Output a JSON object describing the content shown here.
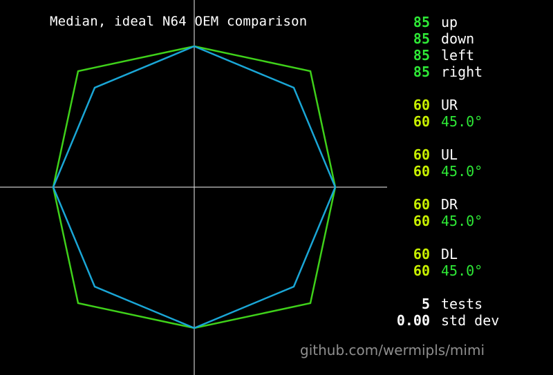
{
  "title": "Median, ideal N64 OEM comparison",
  "colors": {
    "background": "#000000",
    "axis": "#c8c8c8",
    "ideal_outline": "#3fd11a",
    "measured_outline": "#1aa6d6",
    "cardinal_value": "#2ee836",
    "diagonal_value": "#c8f000",
    "angle_value": "#2ee836",
    "label": "#ffffff",
    "footer": "#8f8f8f"
  },
  "stats": {
    "cardinals": [
      {
        "value": "85",
        "label": "up"
      },
      {
        "value": "85",
        "label": "down"
      },
      {
        "value": "85",
        "label": "left"
      },
      {
        "value": "85",
        "label": "right"
      }
    ],
    "diagonals": [
      {
        "value": "60",
        "label": "UR",
        "angle_value": "60",
        "angle": "45.0°"
      },
      {
        "value": "60",
        "label": "UL",
        "angle_value": "60",
        "angle": "45.0°"
      },
      {
        "value": "60",
        "label": "DR",
        "angle_value": "60",
        "angle": "45.0°"
      },
      {
        "value": "60",
        "label": "DL",
        "angle_value": "60",
        "angle": "45.0°"
      }
    ],
    "tests": {
      "value": "5",
      "label": "tests"
    },
    "std_dev": {
      "value": "0.00",
      "label": "std dev"
    }
  },
  "footer": "github.com/wermipls/mimi",
  "chart_data": {
    "type": "scatter",
    "axis_range": [
      -85,
      85
    ],
    "ideal_polygon": {
      "points": [
        [
          0,
          85
        ],
        [
          70,
          70
        ],
        [
          85,
          0
        ],
        [
          70,
          -70
        ],
        [
          0,
          -85
        ],
        [
          -70,
          -70
        ],
        [
          -85,
          0
        ],
        [
          -70,
          70
        ]
      ]
    },
    "measured_polygon": {
      "points": [
        [
          0,
          85
        ],
        [
          60,
          60
        ],
        [
          85,
          0
        ],
        [
          60,
          -60
        ],
        [
          0,
          -85
        ],
        [
          -60,
          -60
        ],
        [
          -85,
          0
        ],
        [
          -60,
          60
        ]
      ]
    }
  }
}
